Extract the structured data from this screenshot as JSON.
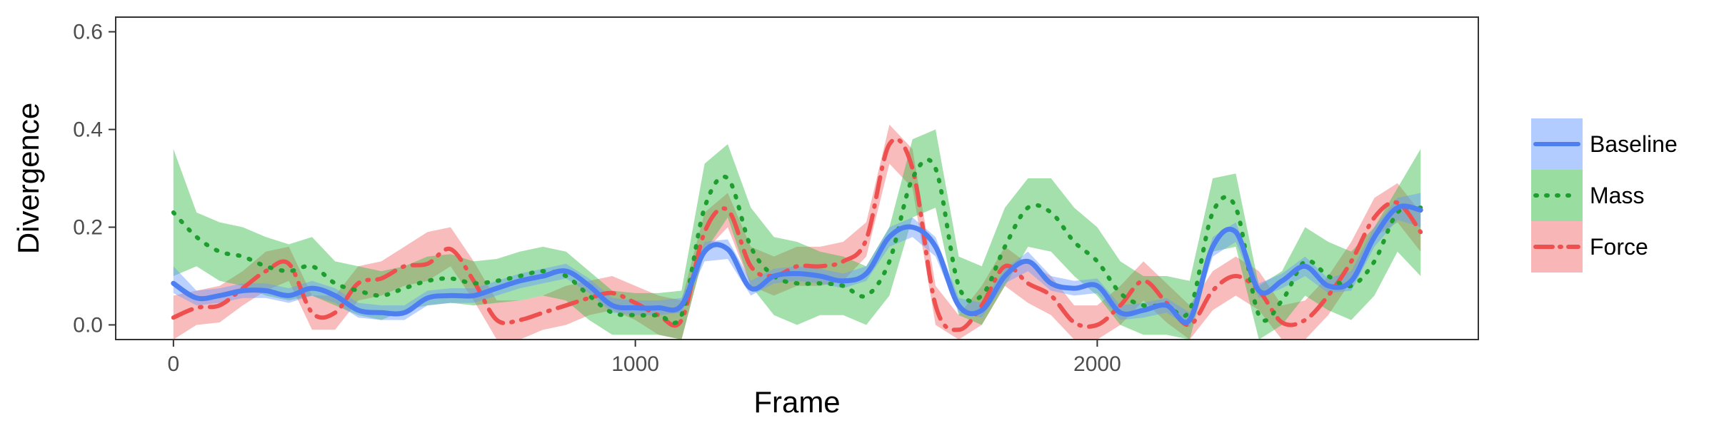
{
  "chart_data": {
    "type": "line",
    "title": "",
    "xlabel": "Frame",
    "ylabel": "Divergence",
    "xlim": [
      -125,
      2825
    ],
    "ylim": [
      -0.03,
      0.63
    ],
    "x_ticks": [
      0,
      1000,
      2000
    ],
    "x_tick_labels": [
      "0",
      "1000",
      "2000"
    ],
    "y_ticks": [
      0.0,
      0.2,
      0.4,
      0.6
    ],
    "y_tick_labels": [
      "0.0",
      "0.2",
      "0.4",
      "0.6"
    ],
    "grid": false,
    "legend_position": "right",
    "x": [
      0,
      50,
      100,
      150,
      200,
      250,
      300,
      350,
      400,
      450,
      500,
      550,
      600,
      650,
      700,
      750,
      800,
      850,
      900,
      950,
      1000,
      1050,
      1100,
      1150,
      1200,
      1250,
      1300,
      1350,
      1400,
      1450,
      1500,
      1550,
      1600,
      1650,
      1700,
      1750,
      1800,
      1850,
      1900,
      1950,
      2000,
      2050,
      2100,
      2150,
      2200,
      2250,
      2300,
      2350,
      2400,
      2450,
      2500,
      2550,
      2600,
      2650,
      2700
    ],
    "series": [
      {
        "name": "Baseline",
        "color": "#4d7ff0",
        "band_color": "#6699ff",
        "band_opacity": 0.45,
        "dash": "solid",
        "values": [
          0.085,
          0.055,
          0.06,
          0.07,
          0.07,
          0.06,
          0.075,
          0.06,
          0.03,
          0.025,
          0.025,
          0.055,
          0.06,
          0.06,
          0.075,
          0.09,
          0.1,
          0.11,
          0.08,
          0.04,
          0.035,
          0.035,
          0.04,
          0.15,
          0.155,
          0.075,
          0.1,
          0.105,
          0.1,
          0.09,
          0.105,
          0.18,
          0.2,
          0.16,
          0.04,
          0.03,
          0.1,
          0.13,
          0.085,
          0.075,
          0.08,
          0.025,
          0.03,
          0.04,
          0.01,
          0.16,
          0.19,
          0.07,
          0.09,
          0.12,
          0.08,
          0.09,
          0.18,
          0.24,
          0.235
        ],
        "lower": [
          0.065,
          0.04,
          0.045,
          0.055,
          0.055,
          0.045,
          0.06,
          0.045,
          0.015,
          0.01,
          0.01,
          0.04,
          0.045,
          0.045,
          0.06,
          0.075,
          0.085,
          0.095,
          0.065,
          0.025,
          0.02,
          0.02,
          0.025,
          0.13,
          0.135,
          0.06,
          0.085,
          0.09,
          0.085,
          0.075,
          0.09,
          0.16,
          0.18,
          0.14,
          0.025,
          0.015,
          0.085,
          0.11,
          0.07,
          0.06,
          0.065,
          0.01,
          0.015,
          0.025,
          -0.005,
          0.14,
          0.17,
          0.055,
          0.075,
          0.1,
          0.065,
          0.07,
          0.16,
          0.215,
          0.2
        ],
        "upper": [
          0.12,
          0.07,
          0.075,
          0.085,
          0.085,
          0.075,
          0.09,
          0.075,
          0.045,
          0.04,
          0.04,
          0.07,
          0.075,
          0.075,
          0.09,
          0.105,
          0.115,
          0.125,
          0.095,
          0.055,
          0.05,
          0.05,
          0.055,
          0.17,
          0.175,
          0.09,
          0.115,
          0.12,
          0.115,
          0.105,
          0.12,
          0.2,
          0.22,
          0.18,
          0.055,
          0.045,
          0.115,
          0.15,
          0.1,
          0.09,
          0.095,
          0.04,
          0.045,
          0.055,
          0.025,
          0.18,
          0.21,
          0.085,
          0.105,
          0.14,
          0.095,
          0.11,
          0.2,
          0.26,
          0.27
        ]
      },
      {
        "name": "Mass",
        "color": "#1e9e2e",
        "band_color": "#33bb44",
        "band_opacity": 0.45,
        "dash": "dot",
        "values": [
          0.23,
          0.18,
          0.15,
          0.14,
          0.12,
          0.11,
          0.12,
          0.085,
          0.07,
          0.06,
          0.075,
          0.09,
          0.095,
          0.085,
          0.09,
          0.1,
          0.11,
          0.1,
          0.06,
          0.025,
          0.02,
          0.02,
          0.02,
          0.24,
          0.3,
          0.16,
          0.1,
          0.085,
          0.085,
          0.08,
          0.06,
          0.13,
          0.3,
          0.32,
          0.08,
          0.06,
          0.16,
          0.24,
          0.23,
          0.17,
          0.13,
          0.065,
          0.04,
          0.04,
          0.03,
          0.23,
          0.24,
          0.02,
          0.05,
          0.13,
          0.1,
          0.08,
          0.13,
          0.23,
          0.24
        ],
        "lower": [
          0.1,
          0.12,
          0.09,
          0.08,
          0.06,
          0.05,
          0.06,
          0.04,
          0.02,
          0.01,
          0.03,
          0.04,
          0.045,
          0.04,
          0.045,
          0.05,
          0.06,
          0.05,
          0.01,
          -0.02,
          -0.02,
          -0.02,
          -0.03,
          0.15,
          0.22,
          0.08,
          0.02,
          0.0,
          0.02,
          0.02,
          0.0,
          0.06,
          0.22,
          0.24,
          0.02,
          0.0,
          0.08,
          0.16,
          0.15,
          0.1,
          0.06,
          0.0,
          -0.02,
          -0.02,
          -0.03,
          0.15,
          0.16,
          -0.03,
          0.0,
          0.06,
          0.03,
          0.01,
          0.06,
          0.15,
          0.1
        ],
        "upper": [
          0.36,
          0.23,
          0.21,
          0.2,
          0.18,
          0.165,
          0.18,
          0.13,
          0.12,
          0.11,
          0.12,
          0.14,
          0.145,
          0.13,
          0.135,
          0.15,
          0.16,
          0.15,
          0.11,
          0.07,
          0.065,
          0.065,
          0.07,
          0.33,
          0.37,
          0.24,
          0.18,
          0.17,
          0.15,
          0.14,
          0.12,
          0.2,
          0.38,
          0.4,
          0.14,
          0.12,
          0.24,
          0.3,
          0.3,
          0.24,
          0.2,
          0.13,
          0.1,
          0.1,
          0.09,
          0.3,
          0.31,
          0.08,
          0.11,
          0.2,
          0.17,
          0.15,
          0.2,
          0.28,
          0.36
        ]
      },
      {
        "name": "Force",
        "color": "#ee5050",
        "band_color": "#f47a7a",
        "band_opacity": 0.5,
        "dash": "dashdot",
        "values": [
          0.015,
          0.035,
          0.04,
          0.075,
          0.11,
          0.125,
          0.025,
          0.025,
          0.085,
          0.095,
          0.12,
          0.125,
          0.155,
          0.09,
          0.01,
          0.01,
          0.025,
          0.04,
          0.055,
          0.065,
          0.045,
          0.02,
          0.01,
          0.19,
          0.235,
          0.12,
          0.1,
          0.12,
          0.12,
          0.13,
          0.175,
          0.37,
          0.32,
          0.04,
          -0.01,
          0.04,
          0.12,
          0.085,
          0.06,
          0.005,
          0.0,
          0.04,
          0.09,
          0.045,
          0.0,
          0.07,
          0.1,
          0.07,
          0.005,
          0.01,
          0.06,
          0.13,
          0.22,
          0.25,
          0.19
        ],
        "lower": [
          -0.03,
          0.0,
          0.005,
          0.04,
          0.07,
          0.09,
          -0.01,
          -0.01,
          0.05,
          0.06,
          0.08,
          0.09,
          0.12,
          0.05,
          -0.03,
          -0.03,
          -0.01,
          0.0,
          0.02,
          0.03,
          0.01,
          -0.02,
          -0.03,
          0.15,
          0.2,
          0.08,
          0.06,
          0.08,
          0.08,
          0.09,
          0.14,
          0.33,
          0.28,
          0.0,
          -0.03,
          0.0,
          0.08,
          0.045,
          0.02,
          -0.03,
          -0.03,
          0.0,
          0.05,
          0.005,
          -0.03,
          0.03,
          0.06,
          0.03,
          -0.03,
          -0.03,
          0.02,
          0.09,
          0.18,
          0.21,
          0.15
        ],
        "upper": [
          0.06,
          0.07,
          0.08,
          0.11,
          0.15,
          0.16,
          0.06,
          0.06,
          0.12,
          0.13,
          0.16,
          0.19,
          0.2,
          0.13,
          0.05,
          0.05,
          0.06,
          0.08,
          0.09,
          0.1,
          0.08,
          0.06,
          0.05,
          0.23,
          0.27,
          0.16,
          0.14,
          0.16,
          0.16,
          0.17,
          0.21,
          0.41,
          0.36,
          0.08,
          0.02,
          0.08,
          0.16,
          0.125,
          0.1,
          0.04,
          0.04,
          0.08,
          0.13,
          0.085,
          0.04,
          0.11,
          0.14,
          0.11,
          0.04,
          0.05,
          0.1,
          0.17,
          0.26,
          0.29,
          0.23
        ]
      }
    ]
  }
}
